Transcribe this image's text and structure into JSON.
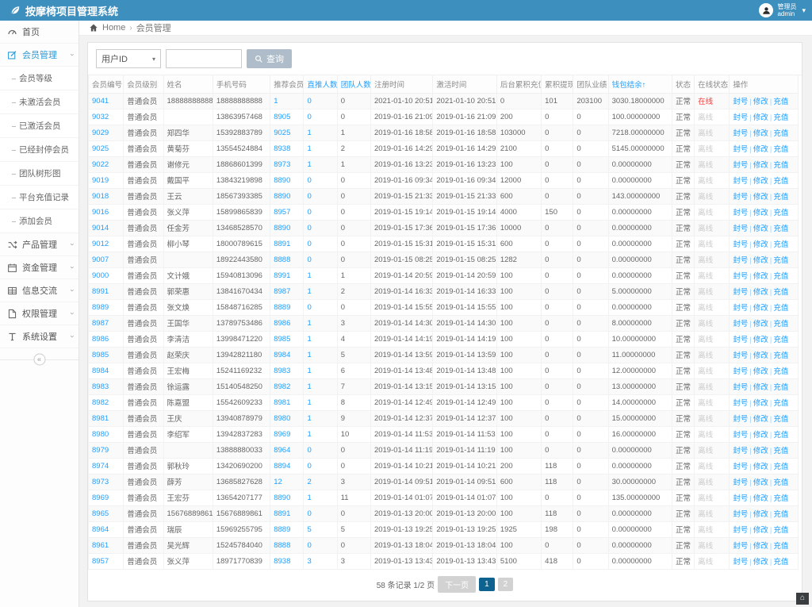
{
  "navbar": {
    "title": "按摩椅项目管理系统",
    "user_role": "管理员",
    "user_name": "admin"
  },
  "breadcrumb": {
    "home": "Home",
    "current": "会员管理"
  },
  "sidebar": {
    "items": [
      {
        "label": "首页",
        "icon": "dashboard-icon"
      },
      {
        "label": "会员管理",
        "icon": "edit-icon",
        "children": [
          "会员等级",
          "未激活会员",
          "已激活会员",
          "已经封停会员",
          "团队树形图",
          "平台充值记录",
          "添加会员"
        ]
      },
      {
        "label": "产品管理",
        "icon": "shuffle-icon"
      },
      {
        "label": "资金管理",
        "icon": "calendar-icon"
      },
      {
        "label": "信息交流",
        "icon": "table-icon"
      },
      {
        "label": "权限管理",
        "icon": "file-icon"
      },
      {
        "label": "系统设置",
        "icon": "font-icon"
      }
    ],
    "collapse_glyph": "«"
  },
  "search": {
    "filter_selected": "用户ID",
    "input_value": "",
    "button_label": "查询"
  },
  "table": {
    "headers": [
      {
        "label": "会员编号"
      },
      {
        "label": "会员级别"
      },
      {
        "label": "姓名"
      },
      {
        "label": "手机号码"
      },
      {
        "label": "推荐会员"
      },
      {
        "label": "直推人数↑",
        "sorted": true
      },
      {
        "label": "团队人数↑",
        "sorted": true
      },
      {
        "label": "注册时间"
      },
      {
        "label": "激活时间"
      },
      {
        "label": "后台累积充值"
      },
      {
        "label": "累积提现"
      },
      {
        "label": "团队业绩"
      },
      {
        "label": "钱包结余↑",
        "sorted": true
      },
      {
        "label": "状态"
      },
      {
        "label": "在线状态"
      },
      {
        "label": "操作"
      }
    ],
    "actions": [
      "封号",
      "修改",
      "充值"
    ],
    "rows": [
      [
        "9041",
        "普通会员",
        "18888888888",
        "18888888888",
        "1",
        "0",
        "0",
        "2021-01-10 20:51",
        "2021-01-10 20:51",
        "0",
        "101",
        "203100",
        "3030.18000000",
        "正常",
        "在线"
      ],
      [
        "9032",
        "普通会员",
        "",
        "13863957468",
        "8905",
        "0",
        "0",
        "2019-01-16 21:09",
        "2019-01-16 21:09",
        "200",
        "0",
        "0",
        "100.00000000",
        "正常",
        "离线"
      ],
      [
        "9029",
        "普通会员",
        "郑四华",
        "15392883789",
        "9025",
        "1",
        "1",
        "2019-01-16 18:58",
        "2019-01-16 18:58",
        "103000",
        "0",
        "0",
        "7218.00000000",
        "正常",
        "离线"
      ],
      [
        "9025",
        "普通会员",
        "黄菊芬",
        "13554524884",
        "8938",
        "1",
        "2",
        "2019-01-16 14:29",
        "2019-01-16 14:29",
        "2100",
        "0",
        "0",
        "5145.00000000",
        "正常",
        "离线"
      ],
      [
        "9022",
        "普通会员",
        "谢修元",
        "18868601399",
        "8973",
        "1",
        "1",
        "2019-01-16 13:23",
        "2019-01-16 13:23",
        "100",
        "0",
        "0",
        "0.00000000",
        "正常",
        "离线"
      ],
      [
        "9019",
        "普通会员",
        "戴国平",
        "13843219898",
        "8890",
        "0",
        "0",
        "2019-01-16 09:34",
        "2019-01-16 09:34",
        "12000",
        "0",
        "0",
        "0.00000000",
        "正常",
        "离线"
      ],
      [
        "9018",
        "普通会员",
        "王云",
        "18567393385",
        "8890",
        "0",
        "0",
        "2019-01-15 21:33",
        "2019-01-15 21:33",
        "600",
        "0",
        "0",
        "143.00000000",
        "正常",
        "离线"
      ],
      [
        "9016",
        "普通会员",
        "张义萍",
        "15899865839",
        "8957",
        "0",
        "0",
        "2019-01-15 19:14",
        "2019-01-15 19:14",
        "4000",
        "150",
        "0",
        "0.00000000",
        "正常",
        "离线"
      ],
      [
        "9014",
        "普通会员",
        "任金芳",
        "13468528570",
        "8890",
        "0",
        "0",
        "2019-01-15 17:36",
        "2019-01-15 17:36",
        "10000",
        "0",
        "0",
        "0.00000000",
        "正常",
        "离线"
      ],
      [
        "9012",
        "普通会员",
        "柳小琴",
        "18000789615",
        "8891",
        "0",
        "0",
        "2019-01-15 15:31",
        "2019-01-15 15:31",
        "600",
        "0",
        "0",
        "0.00000000",
        "正常",
        "离线"
      ],
      [
        "9007",
        "普通会员",
        "",
        "18922443580",
        "8888",
        "0",
        "0",
        "2019-01-15 08:25",
        "2019-01-15 08:25",
        "1282",
        "0",
        "0",
        "0.00000000",
        "正常",
        "离线"
      ],
      [
        "9000",
        "普通会员",
        "文计娥",
        "15940813096",
        "8991",
        "1",
        "1",
        "2019-01-14 20:59",
        "2019-01-14 20:59",
        "100",
        "0",
        "0",
        "0.00000000",
        "正常",
        "离线"
      ],
      [
        "8991",
        "普通会员",
        "郭荣惠",
        "13841670434",
        "8987",
        "1",
        "2",
        "2019-01-14 16:33",
        "2019-01-14 16:33",
        "100",
        "0",
        "0",
        "5.00000000",
        "正常",
        "离线"
      ],
      [
        "8989",
        "普通会员",
        "张文焕",
        "15848716285",
        "8889",
        "0",
        "0",
        "2019-01-14 15:55",
        "2019-01-14 15:55",
        "100",
        "0",
        "0",
        "0.00000000",
        "正常",
        "离线"
      ],
      [
        "8987",
        "普通会员",
        "王国华",
        "13789753486",
        "8986",
        "1",
        "3",
        "2019-01-14 14:30",
        "2019-01-14 14:30",
        "100",
        "0",
        "0",
        "8.00000000",
        "正常",
        "离线"
      ],
      [
        "8986",
        "普通会员",
        "李清洁",
        "13998471220",
        "8985",
        "1",
        "4",
        "2019-01-14 14:19",
        "2019-01-14 14:19",
        "100",
        "0",
        "0",
        "10.00000000",
        "正常",
        "离线"
      ],
      [
        "8985",
        "普通会员",
        "赵荣庆",
        "13942821180",
        "8984",
        "1",
        "5",
        "2019-01-14 13:59",
        "2019-01-14 13:59",
        "100",
        "0",
        "0",
        "11.00000000",
        "正常",
        "离线"
      ],
      [
        "8984",
        "普通会员",
        "王宏梅",
        "15241169232",
        "8983",
        "1",
        "6",
        "2019-01-14 13:48",
        "2019-01-14 13:48",
        "100",
        "0",
        "0",
        "12.00000000",
        "正常",
        "离线"
      ],
      [
        "8983",
        "普通会员",
        "徐运露",
        "15140548250",
        "8982",
        "1",
        "7",
        "2019-01-14 13:15",
        "2019-01-14 13:15",
        "100",
        "0",
        "0",
        "13.00000000",
        "正常",
        "离线"
      ],
      [
        "8982",
        "普通会员",
        "陈嘉盟",
        "15542609233",
        "8981",
        "1",
        "8",
        "2019-01-14 12:49",
        "2019-01-14 12:49",
        "100",
        "0",
        "0",
        "14.00000000",
        "正常",
        "离线"
      ],
      [
        "8981",
        "普通会员",
        "王庆",
        "13940878979",
        "8980",
        "1",
        "9",
        "2019-01-14 12:37",
        "2019-01-14 12:37",
        "100",
        "0",
        "0",
        "15.00000000",
        "正常",
        "离线"
      ],
      [
        "8980",
        "普通会员",
        "李绍军",
        "13942837283",
        "8969",
        "1",
        "10",
        "2019-01-14 11:53",
        "2019-01-14 11:53",
        "100",
        "0",
        "0",
        "16.00000000",
        "正常",
        "离线"
      ],
      [
        "8979",
        "普通会员",
        "",
        "13888880033",
        "8964",
        "0",
        "0",
        "2019-01-14 11:19",
        "2019-01-14 11:19",
        "100",
        "0",
        "0",
        "0.00000000",
        "正常",
        "离线"
      ],
      [
        "8974",
        "普通会员",
        "郭秋玲",
        "13420690200",
        "8894",
        "0",
        "0",
        "2019-01-14 10:21",
        "2019-01-14 10:21",
        "200",
        "118",
        "0",
        "0.00000000",
        "正常",
        "离线"
      ],
      [
        "8973",
        "普通会员",
        "薛芳",
        "13685827628",
        "12",
        "2",
        "3",
        "2019-01-14 09:51",
        "2019-01-14 09:51",
        "600",
        "118",
        "0",
        "30.00000000",
        "正常",
        "离线"
      ],
      [
        "8969",
        "普通会员",
        "王宏芬",
        "13654207177",
        "8890",
        "1",
        "11",
        "2019-01-14 01:07",
        "2019-01-14 01:07",
        "100",
        "0",
        "0",
        "135.00000000",
        "正常",
        "离线"
      ],
      [
        "8965",
        "普通会员",
        "15676889861",
        "15676889861",
        "8891",
        "0",
        "0",
        "2019-01-13 20:00",
        "2019-01-13 20:00",
        "100",
        "118",
        "0",
        "0.00000000",
        "正常",
        "离线"
      ],
      [
        "8964",
        "普通会员",
        "瑞辰",
        "15969255795",
        "8889",
        "5",
        "5",
        "2019-01-13 19:25",
        "2019-01-13 19:25",
        "1925",
        "198",
        "0",
        "0.00000000",
        "正常",
        "离线"
      ],
      [
        "8961",
        "普通会员",
        "吴光辉",
        "15245784040",
        "8888",
        "0",
        "0",
        "2019-01-13 18:04",
        "2019-01-13 18:04",
        "100",
        "0",
        "0",
        "0.00000000",
        "正常",
        "离线"
      ],
      [
        "8957",
        "普通会员",
        "张义萍",
        "18971770839",
        "8938",
        "3",
        "3",
        "2019-01-13 13:43",
        "2019-01-13 13:43",
        "5100",
        "418",
        "0",
        "0.00000000",
        "正常",
        "离线"
      ]
    ]
  },
  "pagination": {
    "summary": "58 条记录 1/2 页",
    "next_label": "下一页",
    "pages": [
      "1",
      "2"
    ],
    "active_page": "1"
  },
  "back_to_top_glyph": "⌂",
  "colors": {
    "navbar": "#3d8fbd",
    "link": "#1e9fff",
    "online": "#f43b3b",
    "offline": "#cccccc",
    "active_page_bg": "#0e628f",
    "search_button_bg": "#aebdc9",
    "sidebar_active": "#2b99d6"
  }
}
